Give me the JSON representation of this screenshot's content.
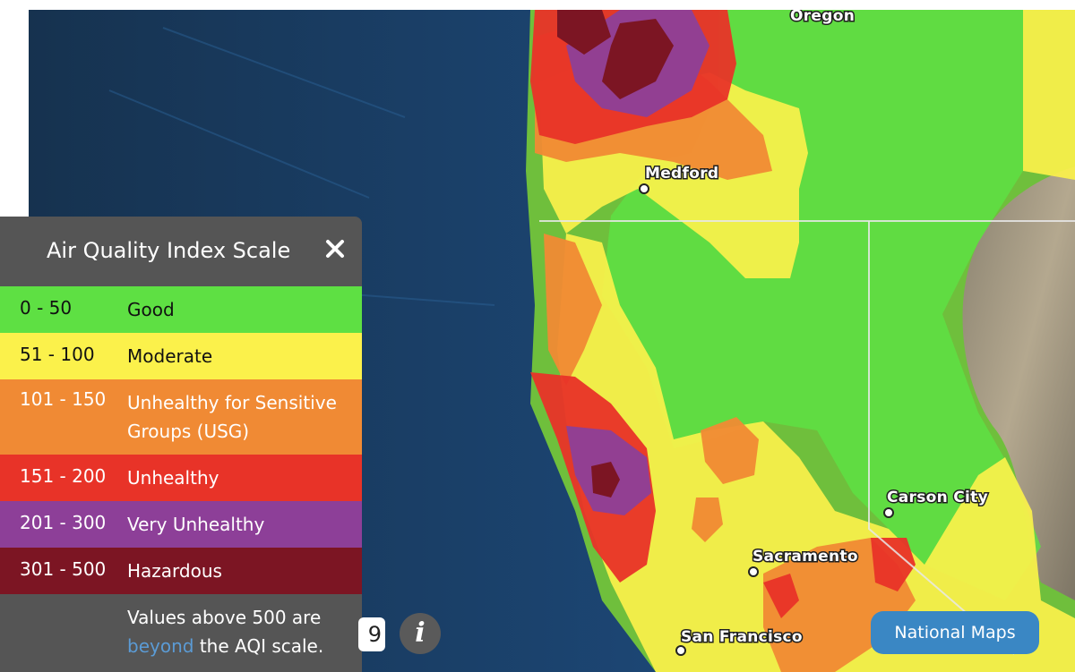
{
  "map": {
    "places": [
      {
        "name": "Oregon"
      },
      {
        "name": "Medford"
      },
      {
        "name": "Carson City"
      },
      {
        "name": "Sacramento"
      },
      {
        "name": "San Francisco"
      }
    ]
  },
  "legend": {
    "title": "Air Quality Index Scale",
    "close_icon": "close-icon",
    "rows": [
      {
        "range": "0 - 50",
        "label": "Good",
        "color": "#5ee043",
        "text_color": "#111111"
      },
      {
        "range": "51 - 100",
        "label": "Moderate",
        "color": "#fbf14b",
        "text_color": "#111111"
      },
      {
        "range": "101 - 150",
        "label": "Unhealthy for Sensitive Groups (USG)",
        "color": "#f08a34",
        "text_color": "#ffffff"
      },
      {
        "range": "151 - 200",
        "label": "Unhealthy",
        "color": "#e83328",
        "text_color": "#ffffff"
      },
      {
        "range": "201 - 300",
        "label": "Very Unhealthy",
        "color": "#8d3f98",
        "text_color": "#ffffff"
      },
      {
        "range": "301 - 500",
        "label": "Hazardous",
        "color": "#7c1523",
        "text_color": "#ffffff"
      }
    ],
    "note_prefix": "Values above 500 are",
    "note_link": "beyond",
    "note_suffix": "the AQI scale."
  },
  "controls": {
    "date_partial": "9",
    "info_icon": "info-icon",
    "info_glyph": "i",
    "national_maps_label": "National Maps"
  }
}
